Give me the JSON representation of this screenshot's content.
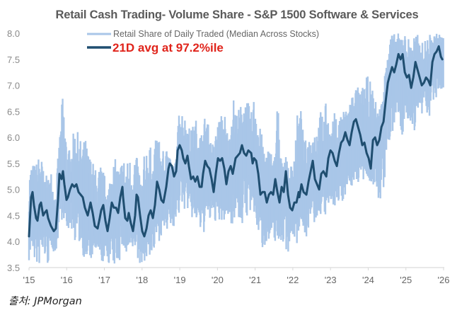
{
  "chart_data": {
    "type": "line",
    "title": "Retail Cash Trading- Volume Share - S&P 1500 Software & Services",
    "xlabel": "",
    "ylabel": "",
    "ylim": [
      3.5,
      8.0
    ],
    "xlim": [
      2015,
      2026
    ],
    "grid": false,
    "legend_position": "top-left",
    "yticks": [
      "8.0",
      "7.5",
      "7.0",
      "6.5",
      "6.0",
      "5.5",
      "5.0",
      "4.5",
      "4.0",
      "3.5"
    ],
    "ytick_values": [
      8.0,
      7.5,
      7.0,
      6.5,
      6.0,
      5.5,
      5.0,
      4.5,
      4.0,
      3.5
    ],
    "xticks": [
      "'15",
      "'16",
      "'17",
      "'18",
      "'19",
      "'20",
      "'21",
      "'22",
      "'23",
      "'24",
      "'25",
      "'26"
    ],
    "xtick_values": [
      2015,
      2016,
      2017,
      2018,
      2019,
      2020,
      2021,
      2022,
      2023,
      2024,
      2025,
      2026
    ],
    "series": [
      {
        "name": "Retail Share of Daily Traded (Median Across Stocks)",
        "color": "#a9c6e8",
        "kind": "daily-band",
        "x": [
          2015.0,
          2015.1,
          2015.2,
          2015.3,
          2015.4,
          2015.5,
          2015.6,
          2015.7,
          2015.8,
          2015.9,
          2016.0,
          2016.1,
          2016.2,
          2016.3,
          2016.4,
          2016.5,
          2016.6,
          2016.7,
          2016.8,
          2016.9,
          2017.0,
          2017.1,
          2017.2,
          2017.3,
          2017.4,
          2017.5,
          2017.6,
          2017.7,
          2017.8,
          2017.9,
          2018.0,
          2018.1,
          2018.2,
          2018.3,
          2018.4,
          2018.5,
          2018.6,
          2018.7,
          2018.8,
          2018.9,
          2019.0,
          2019.1,
          2019.2,
          2019.3,
          2019.4,
          2019.5,
          2019.6,
          2019.7,
          2019.8,
          2019.9,
          2020.0,
          2020.1,
          2020.2,
          2020.3,
          2020.4,
          2020.5,
          2020.6,
          2020.7,
          2020.8,
          2020.9,
          2021.0,
          2021.1,
          2021.2,
          2021.3,
          2021.4,
          2021.5,
          2021.6,
          2021.7,
          2021.8,
          2021.9,
          2022.0,
          2022.1,
          2022.2,
          2022.3,
          2022.4,
          2022.5,
          2022.6,
          2022.7,
          2022.8,
          2022.9,
          2023.0,
          2023.1,
          2023.2,
          2023.3,
          2023.4,
          2023.5,
          2023.6,
          2023.7,
          2023.8,
          2023.9,
          2024.0,
          2024.1,
          2024.2,
          2024.3,
          2024.4,
          2024.5,
          2024.6,
          2024.7,
          2024.8,
          2024.9,
          2025.0,
          2025.1,
          2025.2,
          2025.3,
          2025.4,
          2025.5,
          2025.6,
          2025.7,
          2025.8,
          2025.9,
          2026.0
        ],
        "high": [
          5.45,
          5.5,
          5.55,
          5.8,
          5.3,
          5.25,
          5.45,
          5.0,
          5.9,
          6.95,
          6.0,
          5.7,
          6.2,
          6.1,
          5.9,
          6.0,
          5.7,
          5.55,
          5.35,
          5.5,
          5.3,
          5.1,
          5.5,
          5.6,
          5.4,
          5.65,
          5.55,
          5.7,
          5.8,
          5.5,
          5.2,
          6.05,
          5.9,
          5.6,
          6.2,
          5.8,
          5.7,
          5.9,
          5.3,
          5.6,
          6.7,
          6.5,
          6.3,
          6.15,
          6.4,
          6.3,
          6.1,
          6.6,
          6.0,
          5.9,
          6.3,
          6.45,
          6.5,
          6.0,
          6.9,
          6.5,
          6.6,
          6.8,
          6.7,
          6.5,
          7.0,
          6.3,
          6.0,
          5.8,
          5.85,
          5.6,
          6.9,
          5.5,
          5.8,
          5.3,
          5.7,
          6.4,
          6.7,
          5.9,
          6.1,
          6.0,
          6.3,
          6.5,
          6.6,
          6.7,
          6.0,
          6.5,
          6.3,
          6.6,
          6.5,
          6.8,
          6.9,
          7.0,
          6.9,
          7.1,
          7.2,
          7.0,
          6.7,
          6.6,
          6.8,
          8.0,
          8.0,
          8.0,
          8.0,
          8.0,
          8.0,
          7.9,
          8.0,
          8.0,
          7.8,
          7.9,
          8.0,
          8.0,
          8.0,
          8.0,
          8.0
        ],
        "low": [
          3.6,
          3.7,
          3.5,
          3.5,
          3.7,
          3.5,
          3.9,
          3.7,
          4.2,
          4.5,
          4.1,
          4.3,
          4.0,
          4.0,
          3.8,
          3.6,
          3.5,
          3.7,
          3.8,
          3.5,
          3.6,
          3.6,
          3.4,
          3.5,
          3.6,
          3.8,
          3.6,
          3.8,
          3.9,
          3.5,
          3.6,
          3.6,
          3.7,
          3.7,
          3.9,
          4.1,
          4.2,
          4.0,
          4.3,
          4.2,
          4.5,
          4.6,
          4.6,
          4.4,
          4.4,
          4.2,
          4.1,
          4.2,
          4.3,
          4.5,
          4.2,
          4.2,
          4.4,
          4.4,
          4.3,
          4.6,
          4.2,
          4.3,
          4.5,
          4.4,
          4.3,
          4.1,
          3.8,
          4.0,
          3.8,
          4.0,
          3.9,
          4.0,
          3.8,
          3.8,
          4.1,
          3.9,
          4.4,
          4.2,
          4.0,
          4.3,
          4.3,
          4.5,
          4.5,
          4.4,
          4.6,
          4.7,
          4.6,
          4.7,
          4.9,
          5.0,
          5.0,
          5.1,
          5.1,
          5.1,
          5.2,
          5.1,
          4.8,
          4.7,
          4.9,
          5.6,
          5.8,
          6.2,
          6.4,
          5.9,
          6.2,
          6.3,
          6.0,
          6.4,
          6.2,
          6.7,
          6.3,
          6.6,
          6.6,
          6.9,
          6.9
        ]
      },
      {
        "name": "21D avg at 97.2%ile",
        "color": "#1f4e70",
        "kind": "line",
        "x": [
          2015.0,
          2015.056,
          2015.094,
          2015.131,
          2015.188,
          2015.225,
          2015.281,
          2015.319,
          2015.375,
          2015.413,
          2015.469,
          2015.507,
          2015.582,
          2015.657,
          2015.713,
          2015.77,
          2015.807,
          2015.863,
          2015.901,
          2015.938,
          2015.995,
          2016.032,
          2016.088,
          2016.145,
          2016.201,
          2016.257,
          2016.314,
          2016.37,
          2016.426,
          2016.483,
          2016.558,
          2016.633,
          2016.689,
          2016.746,
          2016.821,
          2016.877,
          2016.915,
          2016.971,
          2017.027,
          2017.084,
          2017.14,
          2017.196,
          2017.253,
          2017.309,
          2017.365,
          2017.422,
          2017.478,
          2017.497,
          2017.553,
          2017.61,
          2017.647,
          2017.704,
          2017.76,
          2017.816,
          2017.854,
          2017.891,
          2017.948,
          2018.004,
          2018.06,
          2018.117,
          2018.173,
          2018.229,
          2018.286,
          2018.342,
          2018.398,
          2018.455,
          2018.511,
          2018.567,
          2018.642,
          2018.699,
          2018.736,
          2018.792,
          2018.849,
          2018.905,
          2018.943,
          2018.999,
          2019.055,
          2019.093,
          2019.149,
          2019.205,
          2019.243,
          2019.299,
          2019.356,
          2019.412,
          2019.468,
          2019.525,
          2019.581,
          2019.618,
          2019.675,
          2019.731,
          2019.787,
          2019.844,
          2019.9,
          2019.956,
          2020.013,
          2020.069,
          2020.125,
          2020.182,
          2020.238,
          2020.294,
          2020.351,
          2020.407,
          2020.482,
          2020.538,
          2020.595,
          2020.651,
          2020.707,
          2020.764,
          2020.82,
          2020.896,
          2020.933,
          2020.971,
          2021.027,
          2021.083,
          2021.14,
          2021.196,
          2021.253,
          2021.309,
          2021.365,
          2021.422,
          2021.478,
          2021.534,
          2021.591,
          2021.647,
          2021.703,
          2021.76,
          2021.816,
          2021.872,
          2021.929,
          2021.985,
          2022.041,
          2022.098,
          2022.154,
          2022.173,
          2022.229,
          2022.286,
          2022.361,
          2022.417,
          2022.473,
          2022.53,
          2022.586,
          2022.642,
          2022.699,
          2022.755,
          2022.811,
          2022.887,
          2022.943,
          2022.999,
          2023.055,
          2023.112,
          2023.168,
          2023.224,
          2023.281,
          2023.337,
          2023.393,
          2023.45,
          2023.506,
          2023.562,
          2023.619,
          2023.675,
          2023.731,
          2023.788,
          2023.844,
          2023.9,
          2023.957,
          2024.013,
          2024.069,
          2024.126,
          2024.182,
          2024.238,
          2024.295,
          2024.351,
          2024.407,
          2024.464,
          2024.52,
          2024.576,
          2024.633,
          2024.689,
          2024.745,
          2024.802,
          2024.858,
          2024.914,
          2024.971,
          2025.027,
          2025.083,
          2025.14,
          2025.196,
          2025.252,
          2025.309,
          2025.365,
          2025.421,
          2025.478,
          2025.534,
          2025.59,
          2025.647,
          2025.703,
          2025.759,
          2025.816,
          2025.872,
          2025.928,
          2025.966
        ],
        "y": [
          4.1,
          4.85,
          4.95,
          4.7,
          4.45,
          4.4,
          4.7,
          4.75,
          4.5,
          4.55,
          4.6,
          4.45,
          4.3,
          4.2,
          4.25,
          4.8,
          5.3,
          5.2,
          5.35,
          5.1,
          4.8,
          4.85,
          5.0,
          5.1,
          5.05,
          5.1,
          4.95,
          4.9,
          4.85,
          4.65,
          4.5,
          4.75,
          4.55,
          4.3,
          4.25,
          4.45,
          4.6,
          4.7,
          4.4,
          4.2,
          4.45,
          4.75,
          4.65,
          4.65,
          4.55,
          4.85,
          5.05,
          4.85,
          4.45,
          4.4,
          4.55,
          4.35,
          4.2,
          4.5,
          4.9,
          4.85,
          4.5,
          4.2,
          4.1,
          4.25,
          4.5,
          4.6,
          4.45,
          4.7,
          5.15,
          5.0,
          4.8,
          4.75,
          5.05,
          5.4,
          5.5,
          5.45,
          5.25,
          5.35,
          5.75,
          5.85,
          5.75,
          5.6,
          5.5,
          5.65,
          5.45,
          5.2,
          5.25,
          5.15,
          5.25,
          5.05,
          5.05,
          5.3,
          5.55,
          5.45,
          5.4,
          5.2,
          4.95,
          5.3,
          5.6,
          5.55,
          5.6,
          5.4,
          5.1,
          5.35,
          5.45,
          5.3,
          5.6,
          5.65,
          5.7,
          5.85,
          5.7,
          5.65,
          5.75,
          5.7,
          5.5,
          5.6,
          5.55,
          5.3,
          4.9,
          4.95,
          4.95,
          4.75,
          4.9,
          4.95,
          4.9,
          5.2,
          4.95,
          4.75,
          5.05,
          4.95,
          5.35,
          4.9,
          4.65,
          4.6,
          4.75,
          4.75,
          4.95,
          4.85,
          5.1,
          4.95,
          4.9,
          5.15,
          5.35,
          5.55,
          5.2,
          5.1,
          5.0,
          5.3,
          5.35,
          5.25,
          5.6,
          5.75,
          5.7,
          5.55,
          5.45,
          5.7,
          5.9,
          5.95,
          6.1,
          5.95,
          5.85,
          6.1,
          6.3,
          6.35,
          6.2,
          6.05,
          5.85,
          5.9,
          5.7,
          5.6,
          5.4,
          5.95,
          6.0,
          5.85,
          5.95,
          6.2,
          6.3,
          6.7,
          7.05,
          7.2,
          7.35,
          7.25,
          7.4,
          7.6,
          7.5,
          7.6,
          7.25,
          7.15,
          7.2,
          6.95,
          7.15,
          7.45,
          7.3,
          7.15,
          7.0,
          7.05,
          7.15,
          7.1,
          7.0,
          7.45,
          7.6,
          7.65,
          7.75,
          7.55,
          7.5
        ]
      }
    ],
    "annotations": [
      "21D avg at 97.2%ile"
    ]
  },
  "source": "출처: JPMorgan",
  "colors": {
    "daily": "#a9c6e8",
    "avg": "#1f4e70",
    "highlight": "#e0241b",
    "axis": "#d9d9d9"
  }
}
